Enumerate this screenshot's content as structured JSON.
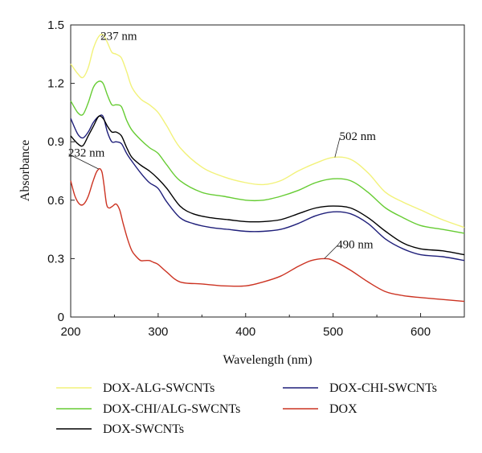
{
  "chart_data": {
    "type": "line",
    "title": "",
    "xlabel": "Wavelength (nm)",
    "ylabel": "Absorbance",
    "xlim": [
      200,
      650
    ],
    "ylim": [
      0,
      1.5
    ],
    "xticks": [
      200,
      300,
      400,
      500,
      600
    ],
    "yticks": [
      0,
      0.3,
      0.6,
      0.9,
      1.2,
      1.5
    ],
    "xtick_labels": [
      "200",
      "300",
      "400",
      "500",
      "600"
    ],
    "ytick_labels": [
      "0",
      "0.3",
      "0.6",
      "0.9",
      "1.2",
      "1.5"
    ],
    "grid": false,
    "legend_position": "bottom",
    "series": [
      {
        "name": "DOX-ALG-SWCNTs",
        "color": "#f2f27a",
        "x": [
          200,
          208,
          214,
          220,
          226,
          232,
          237,
          242,
          247,
          252,
          258,
          264,
          270,
          280,
          290,
          300,
          310,
          325,
          350,
          375,
          400,
          420,
          440,
          460,
          480,
          500,
          520,
          540,
          560,
          580,
          600,
          625,
          650
        ],
        "y": [
          1.3,
          1.25,
          1.23,
          1.28,
          1.38,
          1.44,
          1.45,
          1.41,
          1.36,
          1.35,
          1.33,
          1.26,
          1.18,
          1.12,
          1.09,
          1.05,
          0.98,
          0.87,
          0.77,
          0.72,
          0.69,
          0.68,
          0.7,
          0.75,
          0.79,
          0.82,
          0.81,
          0.74,
          0.64,
          0.59,
          0.55,
          0.5,
          0.46
        ]
      },
      {
        "name": "DOX-CHI/ALG-SWCNTs",
        "color": "#66cc33",
        "x": [
          200,
          208,
          214,
          220,
          226,
          232,
          237,
          242,
          247,
          252,
          258,
          264,
          270,
          280,
          290,
          300,
          310,
          325,
          350,
          375,
          400,
          420,
          440,
          460,
          480,
          500,
          520,
          540,
          560,
          580,
          600,
          625,
          650
        ],
        "y": [
          1.11,
          1.05,
          1.04,
          1.1,
          1.18,
          1.21,
          1.2,
          1.14,
          1.09,
          1.09,
          1.08,
          1.01,
          0.96,
          0.91,
          0.87,
          0.84,
          0.78,
          0.7,
          0.64,
          0.62,
          0.6,
          0.6,
          0.62,
          0.65,
          0.69,
          0.71,
          0.7,
          0.64,
          0.56,
          0.51,
          0.47,
          0.45,
          0.43
        ]
      },
      {
        "name": "DOX-CHI-SWCNTs",
        "color": "#1f1f7a",
        "x": [
          200,
          208,
          214,
          220,
          226,
          232,
          237,
          242,
          247,
          252,
          258,
          264,
          270,
          280,
          290,
          300,
          310,
          325,
          340,
          360,
          380,
          400,
          420,
          440,
          460,
          480,
          500,
          520,
          540,
          560,
          580,
          600,
          625,
          650
        ],
        "y": [
          1.02,
          0.94,
          0.92,
          0.95,
          1.0,
          1.03,
          1.03,
          0.95,
          0.9,
          0.9,
          0.89,
          0.84,
          0.8,
          0.74,
          0.69,
          0.66,
          0.59,
          0.51,
          0.48,
          0.46,
          0.45,
          0.44,
          0.44,
          0.45,
          0.48,
          0.52,
          0.54,
          0.53,
          0.48,
          0.4,
          0.35,
          0.32,
          0.31,
          0.29
        ]
      },
      {
        "name": "DOX-SWCNTs",
        "color": "#000000",
        "x": [
          200,
          208,
          214,
          220,
          226,
          232,
          237,
          242,
          247,
          252,
          258,
          264,
          270,
          280,
          290,
          300,
          310,
          325,
          340,
          360,
          380,
          400,
          420,
          440,
          460,
          480,
          500,
          520,
          540,
          560,
          580,
          600,
          625,
          650
        ],
        "y": [
          0.93,
          0.89,
          0.88,
          0.93,
          0.98,
          1.03,
          1.02,
          0.98,
          0.95,
          0.95,
          0.93,
          0.87,
          0.82,
          0.78,
          0.75,
          0.71,
          0.66,
          0.57,
          0.53,
          0.51,
          0.5,
          0.49,
          0.49,
          0.5,
          0.53,
          0.56,
          0.57,
          0.56,
          0.51,
          0.44,
          0.38,
          0.35,
          0.34,
          0.32
        ]
      },
      {
        "name": "DOX",
        "color": "#cc3322",
        "x": [
          200,
          205,
          210,
          215,
          220,
          225,
          229,
          232,
          234,
          236,
          238,
          241,
          244,
          248,
          252,
          256,
          260,
          265,
          270,
          275,
          280,
          285,
          290,
          295,
          300,
          310,
          325,
          350,
          375,
          400,
          420,
          440,
          460,
          475,
          490,
          500,
          520,
          540,
          560,
          580,
          600,
          625,
          650
        ],
        "y": [
          0.7,
          0.62,
          0.58,
          0.58,
          0.62,
          0.69,
          0.74,
          0.76,
          0.76,
          0.74,
          0.68,
          0.58,
          0.56,
          0.57,
          0.58,
          0.55,
          0.48,
          0.4,
          0.34,
          0.31,
          0.29,
          0.29,
          0.29,
          0.28,
          0.27,
          0.23,
          0.18,
          0.17,
          0.16,
          0.16,
          0.18,
          0.21,
          0.26,
          0.29,
          0.3,
          0.29,
          0.24,
          0.18,
          0.13,
          0.11,
          0.1,
          0.09,
          0.08
        ]
      }
    ],
    "annotations": [
      {
        "text": "237 nm",
        "x": 237,
        "y": 1.45,
        "label_x": 255,
        "label_y": 1.445
      },
      {
        "text": "232 nm",
        "x": 232,
        "y": 0.76,
        "label_x": 218,
        "label_y": 0.845
      },
      {
        "text": "502 nm",
        "x": 502,
        "y": 0.82,
        "label_x": 528,
        "label_y": 0.93
      },
      {
        "text": "490 nm",
        "x": 490,
        "y": 0.3,
        "label_x": 525,
        "label_y": 0.375
      }
    ],
    "legend_layout": [
      [
        "DOX-ALG-SWCNTs",
        "DOX-CHI-SWCNTs"
      ],
      [
        "DOX-CHI/ALG-SWCNTs",
        "DOX"
      ],
      [
        "DOX-SWCNTs"
      ]
    ]
  }
}
